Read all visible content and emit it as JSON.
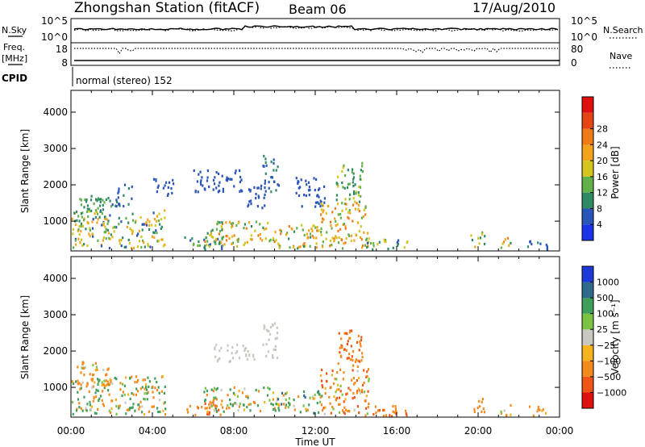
{
  "header": {
    "station": "Zhongshan Station (fitACF)",
    "beam": "Beam 06",
    "date": "17/Aug/2010",
    "mode": "normal (stereo) 152"
  },
  "strip": {
    "left_nsky": "N.Sky",
    "left_freq": "Freq.",
    "left_freq_unit": "[MHz]",
    "left_cpid": "CPID",
    "right_nsearch": "N.Search",
    "right_nave": "Nave",
    "nsky_ticks": [
      "10^5",
      "10^0"
    ],
    "freq_ticks": [
      "18",
      "8"
    ],
    "nsearch_ticks": [
      "10^5",
      "10^0"
    ],
    "nave_ticks": [
      "80",
      "0"
    ]
  },
  "colors": {
    "power": [
      "#1c34e8",
      "#2a55b8",
      "#2f8a64",
      "#62b04a",
      "#d3c51d",
      "#f3a21c",
      "#f07a16",
      "#e54512",
      "#e01010"
    ],
    "velocity": [
      "#e01010",
      "#ef5517",
      "#f38a1d",
      "#f5b31f",
      "#c8c8c0",
      "#7cc343",
      "#3f9e5a",
      "#2f6a8c",
      "#1c3ad8"
    ]
  },
  "chart_data": [
    {
      "type": "heatmap",
      "title": "",
      "xlabel": "",
      "ylabel": "Slant Range [km]",
      "xlim": [
        0,
        24
      ],
      "ylim": [
        180,
        4600
      ],
      "yticks": [
        1000,
        2000,
        3000,
        4000
      ],
      "colorbar_label": "Power [dB]",
      "colorbar_ticks": [
        "4",
        "8",
        "12",
        "16",
        "20",
        "24",
        "28"
      ],
      "regions": [
        {
          "t": [
            0.0,
            4.6
          ],
          "r": [
            250,
            1300
          ],
          "v": [
            6,
            24
          ]
        },
        {
          "t": [
            0.2,
            2.0
          ],
          "r": [
            1000,
            1700
          ],
          "v": [
            8,
            16
          ]
        },
        {
          "t": [
            2.0,
            3.0
          ],
          "r": [
            1400,
            2000
          ],
          "v": [
            4,
            10
          ]
        },
        {
          "t": [
            4.0,
            5.0
          ],
          "r": [
            1700,
            2200
          ],
          "v": [
            4,
            8
          ]
        },
        {
          "t": [
            5.5,
            7.5
          ],
          "r": [
            220,
            600
          ],
          "v": [
            4,
            16
          ]
        },
        {
          "t": [
            6.5,
            10.0
          ],
          "r": [
            300,
            1000
          ],
          "v": [
            10,
            26
          ]
        },
        {
          "t": [
            8.6,
            9.6
          ],
          "r": [
            1300,
            2000
          ],
          "v": [
            4,
            8
          ]
        },
        {
          "t": [
            6.0,
            8.4
          ],
          "r": [
            1800,
            2400
          ],
          "v": [
            4,
            8
          ]
        },
        {
          "t": [
            9.4,
            10.2
          ],
          "r": [
            1800,
            2800
          ],
          "v": [
            4,
            12
          ]
        },
        {
          "t": [
            10.0,
            12.3
          ],
          "r": [
            250,
            900
          ],
          "v": [
            10,
            26
          ]
        },
        {
          "t": [
            11.0,
            12.5
          ],
          "r": [
            1400,
            2200
          ],
          "v": [
            4,
            8
          ]
        },
        {
          "t": [
            12.2,
            14.6
          ],
          "r": [
            250,
            1500
          ],
          "v": [
            12,
            28
          ]
        },
        {
          "t": [
            13.0,
            14.3
          ],
          "r": [
            1500,
            2600
          ],
          "v": [
            8,
            18
          ]
        },
        {
          "t": [
            14.3,
            16.6
          ],
          "r": [
            200,
            500
          ],
          "v": [
            4,
            20
          ]
        },
        {
          "t": [
            19.6,
            20.3
          ],
          "r": [
            250,
            700
          ],
          "v": [
            8,
            22
          ]
        },
        {
          "t": [
            21.0,
            21.6
          ],
          "r": [
            200,
            550
          ],
          "v": [
            10,
            28
          ]
        },
        {
          "t": [
            22.4,
            23.4
          ],
          "r": [
            200,
            500
          ],
          "v": [
            4,
            10
          ]
        }
      ]
    },
    {
      "type": "heatmap",
      "title": "",
      "xlabel": "Time UT",
      "ylabel": "Slant Range [km]",
      "xlim": [
        0,
        24
      ],
      "ylim": [
        180,
        4600
      ],
      "xticks": [
        "00:00",
        "04:00",
        "08:00",
        "12:00",
        "16:00",
        "20:00",
        "00:00"
      ],
      "yticks": [
        1000,
        2000,
        3000,
        4000
      ],
      "colorbar_label": "Velocity [m s⁻¹]",
      "colorbar_ticks": [
        "-1000",
        "-500",
        "-100",
        "-25",
        "25",
        "100",
        "500",
        "1000"
      ],
      "regions": [
        {
          "t": [
            0.0,
            4.6
          ],
          "r": [
            250,
            1300
          ],
          "v": [
            -500,
            500
          ]
        },
        {
          "t": [
            0.2,
            2.0
          ],
          "r": [
            1000,
            1700
          ],
          "v": [
            -500,
            100
          ]
        },
        {
          "t": [
            5.5,
            7.5
          ],
          "r": [
            220,
            600
          ],
          "v": [
            -800,
            -100
          ]
        },
        {
          "t": [
            6.5,
            10.0
          ],
          "r": [
            300,
            1000
          ],
          "v": [
            -300,
            400
          ]
        },
        {
          "t": [
            7.0,
            9.0
          ],
          "r": [
            1700,
            2200
          ],
          "v": [
            -20,
            20
          ]
        },
        {
          "t": [
            9.4,
            10.2
          ],
          "r": [
            1800,
            2800
          ],
          "v": [
            -20,
            20
          ]
        },
        {
          "t": [
            10.0,
            12.3
          ],
          "r": [
            250,
            900
          ],
          "v": [
            -200,
            600
          ]
        },
        {
          "t": [
            12.2,
            14.6
          ],
          "r": [
            250,
            1500
          ],
          "v": [
            -800,
            100
          ]
        },
        {
          "t": [
            13.0,
            14.3
          ],
          "r": [
            1500,
            2600
          ],
          "v": [
            -800,
            -100
          ]
        },
        {
          "t": [
            14.3,
            16.6
          ],
          "r": [
            200,
            500
          ],
          "v": [
            -700,
            -150
          ]
        },
        {
          "t": [
            19.6,
            20.3
          ],
          "r": [
            250,
            700
          ],
          "v": [
            -500,
            -100
          ]
        },
        {
          "t": [
            21.0,
            21.6
          ],
          "r": [
            200,
            550
          ],
          "v": [
            -500,
            100
          ]
        },
        {
          "t": [
            22.4,
            23.4
          ],
          "r": [
            200,
            500
          ],
          "v": [
            -300,
            0
          ]
        }
      ]
    }
  ]
}
